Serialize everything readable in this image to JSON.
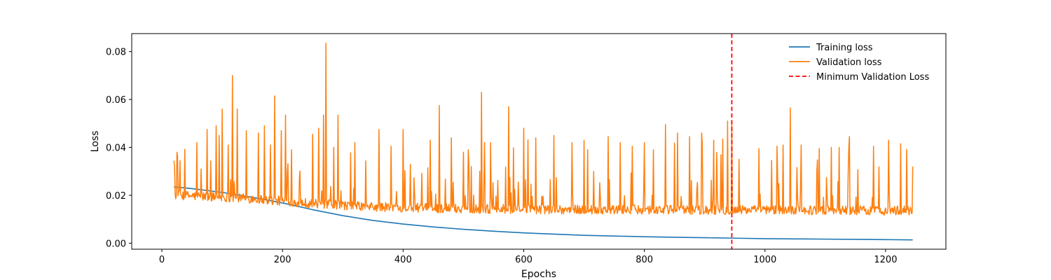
{
  "chart_data": {
    "type": "line",
    "title": "",
    "xlabel": "Epochs",
    "ylabel": "Loss",
    "xlim": [
      -50,
      1300
    ],
    "ylim": [
      -0.0025,
      0.0875
    ],
    "x_ticks": [
      0,
      200,
      400,
      600,
      800,
      1000,
      1200
    ],
    "y_ticks": [
      0.0,
      0.02,
      0.04,
      0.06,
      0.08
    ],
    "x_tick_labels": [
      "0",
      "200",
      "400",
      "600",
      "800",
      "1000",
      "1200"
    ],
    "y_tick_labels": [
      "0.00",
      "0.02",
      "0.04",
      "0.06",
      "0.08"
    ],
    "grid": false,
    "legend_position": "top-right",
    "series": [
      {
        "name": "Training loss",
        "color": "#1f77b4",
        "style": "solid",
        "points": [
          [
            20,
            0.0235
          ],
          [
            50,
            0.0228
          ],
          [
            100,
            0.0212
          ],
          [
            150,
            0.0192
          ],
          [
            200,
            0.0168
          ],
          [
            250,
            0.014
          ],
          [
            300,
            0.0115
          ],
          [
            350,
            0.0095
          ],
          [
            400,
            0.008
          ],
          [
            450,
            0.0068
          ],
          [
            500,
            0.0058
          ],
          [
            550,
            0.005
          ],
          [
            600,
            0.0043
          ],
          [
            650,
            0.0038
          ],
          [
            700,
            0.0033
          ],
          [
            750,
            0.003
          ],
          [
            800,
            0.0027
          ],
          [
            850,
            0.0025
          ],
          [
            900,
            0.0023
          ],
          [
            950,
            0.0021
          ],
          [
            1000,
            0.0019
          ],
          [
            1050,
            0.0018
          ],
          [
            1100,
            0.0017
          ],
          [
            1150,
            0.0016
          ],
          [
            1200,
            0.0015
          ],
          [
            1245,
            0.0014
          ]
        ]
      },
      {
        "name": "Validation loss",
        "color": "#ff7f0e",
        "style": "solid",
        "x_start": 20,
        "x_end": 1245,
        "baseline": [
          [
            20,
            0.0195
          ],
          [
            150,
            0.018
          ],
          [
            250,
            0.016
          ],
          [
            350,
            0.0145
          ],
          [
            450,
            0.014
          ],
          [
            600,
            0.0135
          ],
          [
            1245,
            0.013
          ]
        ],
        "noise_amplitude": 0.004,
        "spike_probability": 0.085,
        "spike_height_range": [
          0.006,
          0.03
        ],
        "spikes": [
          [
            20,
            0.0345
          ],
          [
            30,
            0.0345
          ],
          [
            58,
            0.042
          ],
          [
            65,
            0.031
          ],
          [
            75,
            0.0475
          ],
          [
            90,
            0.049
          ],
          [
            95,
            0.045
          ],
          [
            100,
            0.056
          ],
          [
            110,
            0.041
          ],
          [
            117,
            0.07
          ],
          [
            125,
            0.056
          ],
          [
            140,
            0.047
          ],
          [
            160,
            0.046
          ],
          [
            170,
            0.049
          ],
          [
            180,
            0.041
          ],
          [
            187,
            0.0615
          ],
          [
            198,
            0.047
          ],
          [
            205,
            0.0535
          ],
          [
            215,
            0.039
          ],
          [
            250,
            0.0455
          ],
          [
            260,
            0.048
          ],
          [
            268,
            0.0535
          ],
          [
            272,
            0.0835
          ],
          [
            285,
            0.04
          ],
          [
            292,
            0.0535
          ],
          [
            320,
            0.042
          ],
          [
            360,
            0.0475
          ],
          [
            380,
            0.0405
          ],
          [
            400,
            0.0475
          ],
          [
            412,
            0.033
          ],
          [
            445,
            0.043
          ],
          [
            460,
            0.0575
          ],
          [
            480,
            0.044
          ],
          [
            500,
            0.038
          ],
          [
            530,
            0.063
          ],
          [
            545,
            0.042
          ],
          [
            575,
            0.057
          ],
          [
            600,
            0.048
          ],
          [
            620,
            0.044
          ],
          [
            650,
            0.045
          ],
          [
            680,
            0.042
          ],
          [
            700,
            0.043
          ],
          [
            740,
            0.0445
          ],
          [
            760,
            0.042
          ],
          [
            780,
            0.0405
          ],
          [
            800,
            0.042
          ],
          [
            815,
            0.039
          ],
          [
            835,
            0.0495
          ],
          [
            855,
            0.046
          ],
          [
            875,
            0.0445
          ],
          [
            895,
            0.046
          ],
          [
            915,
            0.043
          ],
          [
            930,
            0.0435
          ],
          [
            938,
            0.051
          ],
          [
            945,
            0.0505
          ],
          [
            990,
            0.0395
          ],
          [
            1020,
            0.0405
          ],
          [
            1030,
            0.041
          ],
          [
            1042,
            0.0565
          ],
          [
            1060,
            0.041
          ],
          [
            1090,
            0.0395
          ],
          [
            1110,
            0.04
          ],
          [
            1140,
            0.0445
          ],
          [
            1180,
            0.0405
          ],
          [
            1205,
            0.043
          ],
          [
            1225,
            0.0415
          ],
          [
            1245,
            0.032
          ]
        ]
      }
    ],
    "annotations": [
      {
        "name": "Minimum Validation Loss",
        "type": "vline",
        "x": 945,
        "color": "#ff0000",
        "style": "dashed"
      }
    ]
  }
}
